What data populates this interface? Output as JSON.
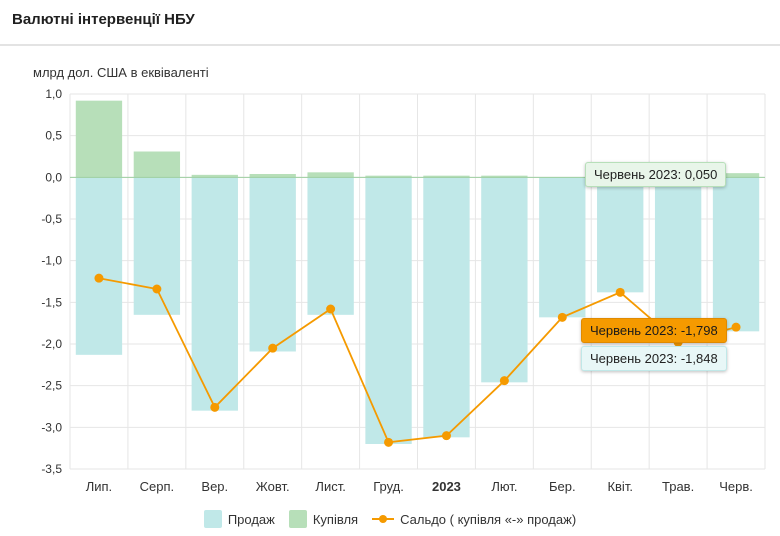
{
  "header": {
    "title": "Валютні інтервенції НБУ"
  },
  "colors": {
    "sales": "#c0e8e8",
    "purchases": "#b7dfb9",
    "balance": "#f59a00",
    "grid": "#e6e6e6"
  },
  "chart_data": {
    "type": "bar",
    "ylabel": "млрд дол. США в еквіваленті",
    "categories": [
      "Лип.",
      "Серп.",
      "Вер.",
      "Жовт.",
      "Лист.",
      "Груд.",
      "2023",
      "Лют.",
      "Бер.",
      "Квіт.",
      "Трав.",
      "Черв."
    ],
    "bold_categories": [
      "2023"
    ],
    "ylim": [
      -3.5,
      1.0
    ],
    "yticks": [
      "1,0",
      "0,5",
      "0,0",
      "-0,5",
      "-1,0",
      "-1,5",
      "-2,0",
      "-2,5",
      "-3,0",
      "-3,5"
    ],
    "ytick_values": [
      1.0,
      0.5,
      0.0,
      -0.5,
      -1.0,
      -1.5,
      -2.0,
      -2.5,
      -3.0,
      -3.5
    ],
    "grid": true,
    "series": [
      {
        "name": "Продаж",
        "kind": "bar",
        "values": [
          -2.13,
          -1.65,
          -2.8,
          -2.09,
          -1.65,
          -3.2,
          -3.12,
          -2.46,
          -1.68,
          -1.38,
          -1.98,
          -1.848
        ]
      },
      {
        "name": "Купівля",
        "kind": "bar",
        "values": [
          0.92,
          0.31,
          0.03,
          0.04,
          0.06,
          0.02,
          0.02,
          0.02,
          0.0,
          0.0,
          0.0,
          0.05
        ]
      },
      {
        "name": "Сальдо ( купівля «-» продаж)",
        "kind": "line",
        "values": [
          -1.21,
          -1.34,
          -2.76,
          -2.05,
          -1.58,
          -3.18,
          -3.1,
          -2.44,
          -1.68,
          -1.38,
          -1.98,
          -1.798
        ]
      }
    ],
    "legend_position": "bottom"
  },
  "tooltips": {
    "purchases": "Червень 2023: 0,050",
    "balance": "Червень 2023: -1,798",
    "sales": "Червень 2023: -1,848"
  }
}
